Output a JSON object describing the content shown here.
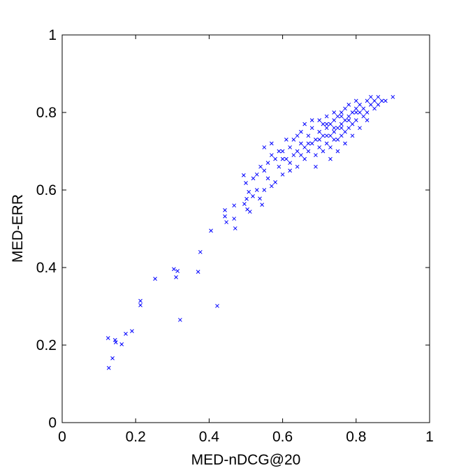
{
  "chart_data": {
    "type": "scatter",
    "x_label": "MED-nDCG@20",
    "y_label": "MED-ERR",
    "color": "#0000ff",
    "xlim": [
      0,
      1
    ],
    "ylim": [
      0,
      1
    ],
    "xticks": [
      0,
      0.2,
      0.4,
      0.6,
      0.8,
      1
    ],
    "yticks": [
      0,
      0.2,
      0.4,
      0.6,
      0.8,
      1
    ],
    "x": [
      0.125,
      0.127,
      0.137,
      0.144,
      0.146,
      0.162,
      0.173,
      0.19,
      0.213,
      0.213,
      0.253,
      0.304,
      0.31,
      0.314,
      0.321,
      0.37,
      0.376,
      0.422,
      0.405,
      0.443,
      0.443,
      0.447,
      0.468,
      0.471,
      0.468,
      0.496,
      0.502,
      0.504,
      0.511,
      0.494,
      0.5,
      0.508,
      0.519,
      0.544,
      0.538,
      0.53,
      0.54,
      0.55,
      0.56,
      0.57,
      0.56,
      0.58,
      0.59,
      0.6,
      0.61,
      0.6,
      0.62,
      0.62,
      0.63,
      0.63,
      0.64,
      0.64,
      0.65,
      0.65,
      0.66,
      0.66,
      0.67,
      0.67,
      0.68,
      0.68,
      0.69,
      0.69,
      0.7,
      0.7,
      0.7,
      0.71,
      0.71,
      0.72,
      0.72,
      0.72,
      0.73,
      0.73,
      0.73,
      0.74,
      0.74,
      0.74,
      0.75,
      0.75,
      0.75,
      0.76,
      0.76,
      0.76,
      0.77,
      0.77,
      0.77,
      0.78,
      0.78,
      0.78,
      0.79,
      0.79,
      0.8,
      0.8,
      0.8,
      0.81,
      0.81,
      0.82,
      0.82,
      0.83,
      0.83,
      0.84,
      0.84,
      0.85,
      0.85,
      0.86,
      0.86,
      0.87,
      0.88,
      0.9,
      0.55,
      0.57,
      0.59,
      0.61,
      0.58,
      0.52,
      0.53,
      0.55,
      0.57,
      0.6,
      0.62,
      0.64,
      0.66,
      0.68,
      0.69,
      0.71,
      0.73,
      0.75,
      0.77,
      0.79,
      0.81,
      0.83,
      0.7,
      0.72,
      0.74,
      0.76,
      0.78,
      0.76,
      0.74,
      0.72,
      0.8,
      0.65,
      0.67
    ],
    "values": [
      0.218,
      0.141,
      0.166,
      0.213,
      0.207,
      0.202,
      0.229,
      0.236,
      0.314,
      0.303,
      0.371,
      0.396,
      0.375,
      0.391,
      0.265,
      0.389,
      0.44,
      0.301,
      0.495,
      0.548,
      0.532,
      0.517,
      0.526,
      0.501,
      0.56,
      0.564,
      0.577,
      0.55,
      0.544,
      0.638,
      0.618,
      0.595,
      0.584,
      0.562,
      0.578,
      0.64,
      0.66,
      0.65,
      0.67,
      0.69,
      0.63,
      0.62,
      0.66,
      0.7,
      0.68,
      0.64,
      0.71,
      0.67,
      0.69,
      0.73,
      0.7,
      0.66,
      0.72,
      0.75,
      0.71,
      0.68,
      0.74,
      0.7,
      0.72,
      0.76,
      0.73,
      0.69,
      0.75,
      0.71,
      0.78,
      0.74,
      0.77,
      0.72,
      0.76,
      0.79,
      0.74,
      0.77,
      0.71,
      0.75,
      0.78,
      0.8,
      0.76,
      0.73,
      0.79,
      0.77,
      0.74,
      0.8,
      0.78,
      0.75,
      0.81,
      0.79,
      0.76,
      0.82,
      0.8,
      0.77,
      0.81,
      0.78,
      0.83,
      0.8,
      0.82,
      0.79,
      0.81,
      0.83,
      0.8,
      0.82,
      0.84,
      0.81,
      0.83,
      0.84,
      0.82,
      0.83,
      0.83,
      0.84,
      0.71,
      0.72,
      0.7,
      0.73,
      0.68,
      0.63,
      0.6,
      0.6,
      0.61,
      0.68,
      0.65,
      0.74,
      0.77,
      0.78,
      0.66,
      0.7,
      0.68,
      0.7,
      0.72,
      0.74,
      0.76,
      0.78,
      0.73,
      0.74,
      0.73,
      0.76,
      0.78,
      0.79,
      0.76,
      0.77,
      0.8,
      0.69,
      0.72
    ]
  }
}
